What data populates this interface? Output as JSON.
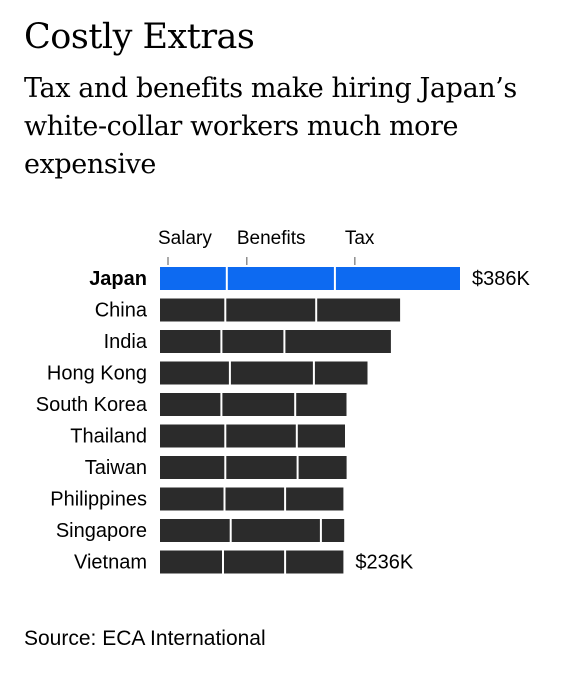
{
  "title": "Costly Extras",
  "subtitle": "Tax and benefits make hiring Japan’s white-collar workers much more expensive",
  "source": "Source: ECA International",
  "colors": {
    "highlight": "#0d6af1",
    "default": "#2b2b2b",
    "separator": "#ffffff",
    "text": "#000000"
  },
  "chart_data": {
    "type": "bar",
    "orientation": "horizontal",
    "stacked": true,
    "unit": "USD thousands",
    "highlight_category": "Japan",
    "categories": [
      "Japan",
      "China",
      "India",
      "Hong Kong",
      "South Korea",
      "Thailand",
      "Taiwan",
      "Philippines",
      "Singapore",
      "Vietnam"
    ],
    "series": [
      {
        "name": "Salary",
        "values": [
          86,
          84,
          79,
          90,
          79,
          84,
          84,
          83,
          91,
          81
        ]
      },
      {
        "name": "Benefits",
        "values": [
          139,
          117,
          81,
          108,
          95,
          92,
          93,
          78,
          116,
          80
        ]
      },
      {
        "name": "Tax",
        "values": [
          161,
          108,
          137,
          69,
          66,
          62,
          63,
          75,
          30,
          75
        ]
      }
    ],
    "totals": [
      386,
      309,
      297,
      267,
      240,
      238,
      240,
      236,
      237,
      236
    ],
    "total_labels": {
      "Japan": "$386K",
      "Vietnam": "$236K"
    },
    "xlim": [
      0,
      386
    ],
    "grid": false,
    "legend": "top"
  }
}
